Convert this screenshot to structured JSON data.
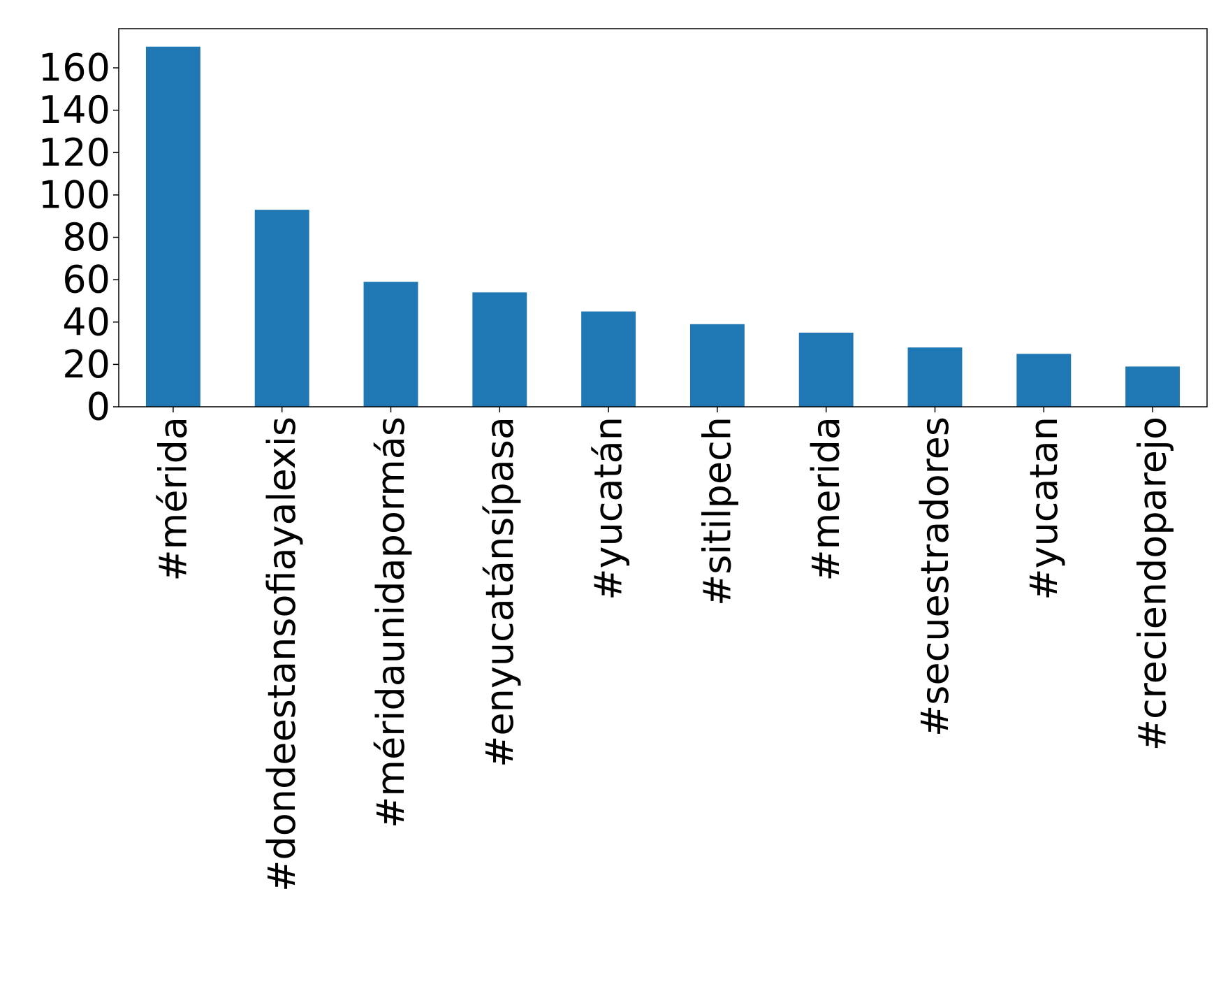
{
  "chart_data": {
    "type": "bar",
    "categories": [
      "#mérida",
      "#dondeestansofiayalexis",
      "#méridaunidapormás",
      "#enyucatánsípasa",
      "#yucatán",
      "#sitilpech",
      "#merida",
      "#secuestradores",
      "#yucatan",
      "#creciendoparejo"
    ],
    "values": [
      170,
      93,
      59,
      54,
      45,
      39,
      35,
      28,
      25,
      19
    ],
    "color": "#1f77b4",
    "ylim": [
      0,
      178.5
    ],
    "yticks": [
      0,
      20,
      40,
      60,
      80,
      100,
      120,
      140,
      160
    ],
    "grid": false
  }
}
